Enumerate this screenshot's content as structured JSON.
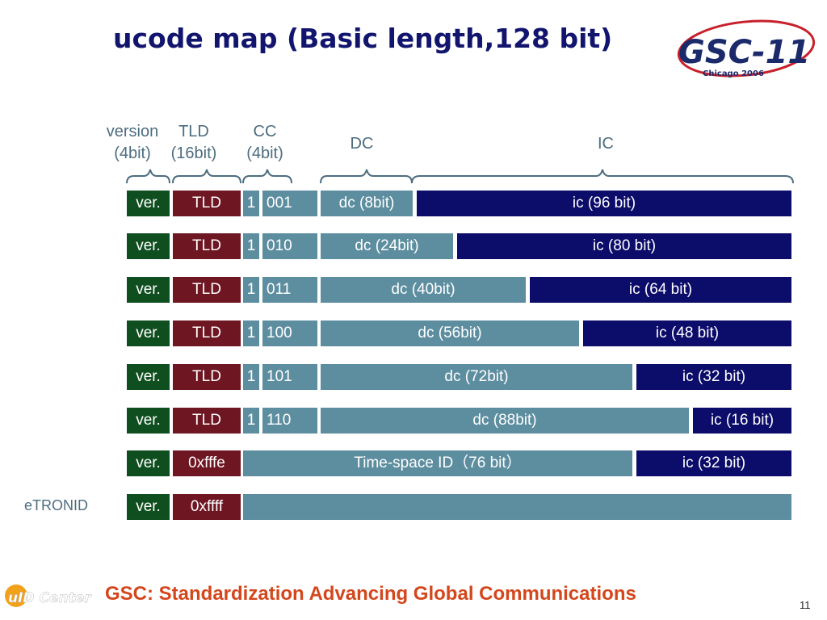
{
  "title": "ucode map (Basic length,128 bit)",
  "logo": {
    "main": "GSC-11",
    "sub": "Chicago 2006"
  },
  "headers": {
    "version": [
      "version",
      "(4bit)"
    ],
    "tld": [
      "TLD",
      "(16bit)"
    ],
    "cc": [
      "CC",
      "(4bit)"
    ],
    "dc": "DC",
    "ic": "IC"
  },
  "rows": [
    {
      "ver": "ver.",
      "tld": "TLD",
      "flag": "1",
      "cc": "001",
      "dc": "dc (8bit)",
      "ic": "ic (96 bit)"
    },
    {
      "ver": "ver.",
      "tld": "TLD",
      "flag": "1",
      "cc": "010",
      "dc": "dc (24bit)",
      "ic": "ic (80 bit)"
    },
    {
      "ver": "ver.",
      "tld": "TLD",
      "flag": "1",
      "cc": "011",
      "dc": "dc (40bit)",
      "ic": "ic (64 bit)"
    },
    {
      "ver": "ver.",
      "tld": "TLD",
      "flag": "1",
      "cc": "100",
      "dc": "dc (56bit)",
      "ic": "ic (48 bit)"
    },
    {
      "ver": "ver.",
      "tld": "TLD",
      "flag": "1",
      "cc": "101",
      "dc": "dc (72bit)",
      "ic": "ic (32 bit)"
    },
    {
      "ver": "ver.",
      "tld": "TLD",
      "flag": "1",
      "cc": "110",
      "dc": "dc (88bit)",
      "ic": "ic (16 bit)"
    }
  ],
  "timespace_row": {
    "ver": "ver.",
    "tld": "0xfffe",
    "mid": "Time-space ID（76 bit）",
    "ic": "ic (32 bit)"
  },
  "etronid_row": {
    "label": "eTRONID",
    "ver": "ver.",
    "tld": "0xffff"
  },
  "ucenter_logo": "uID Center",
  "footer": "GSC: Standardization Advancing Global Communications",
  "page_number": "11"
}
